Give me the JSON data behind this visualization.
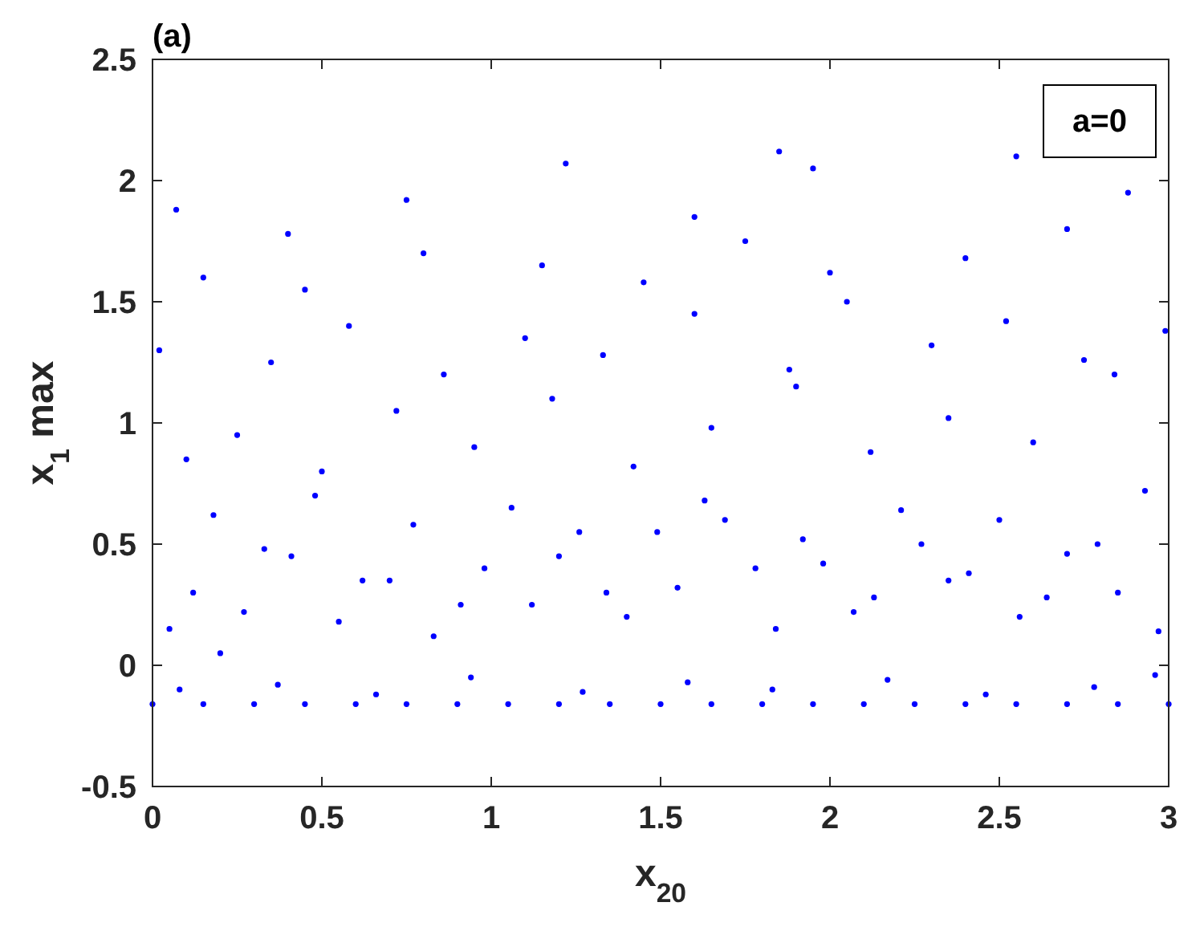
{
  "chart_data": {
    "type": "scatter",
    "title": "(a)",
    "xlabel": "x$_{20}$",
    "ylabel": "x$_{1}$ max",
    "annotations": [
      "a=0"
    ],
    "xlim": [
      0,
      3
    ],
    "ylim": [
      -0.5,
      2.5
    ],
    "xticks": [
      0,
      0.5,
      1,
      1.5,
      2,
      2.5,
      3
    ],
    "yticks": [
      -0.5,
      0,
      0.5,
      1,
      1.5,
      2,
      2.5
    ],
    "grid": false,
    "marker": "circle",
    "series": [
      {
        "color": "#0000ff",
        "x": [
          0,
          0.15,
          0.3,
          0.45,
          0.6,
          0.75,
          0.9,
          1.05,
          1.2,
          1.35,
          1.5,
          1.65,
          1.8,
          1.95,
          2.1,
          2.25,
          2.4,
          2.55,
          2.7,
          2.85,
          3,
          0.08,
          0.37,
          0.66,
          0.94,
          1.27,
          1.58,
          1.83,
          2.17,
          2.46,
          2.78,
          2.96,
          0.2,
          0.05,
          0.12,
          0.27,
          0.41,
          0.55,
          0.7,
          0.83,
          0.98,
          1.12,
          1.26,
          1.4,
          1.55,
          1.69,
          1.84,
          1.98,
          2.13,
          2.27,
          2.41,
          2.56,
          2.7,
          2.85,
          2.97,
          0.18,
          0.33,
          0.48,
          0.62,
          0.77,
          0.91,
          1.06,
          1.2,
          1.34,
          1.49,
          1.63,
          1.78,
          1.92,
          2.07,
          2.21,
          2.35,
          2.5,
          2.64,
          2.79,
          2.93,
          0.1,
          0.25,
          0.5,
          0.72,
          0.95,
          1.18,
          1.42,
          1.65,
          1.9,
          2.12,
          2.35,
          2.6,
          2.84,
          0.02,
          0.35,
          0.58,
          0.86,
          1.1,
          1.33,
          1.6,
          1.88,
          2.05,
          2.3,
          2.52,
          2.75,
          2.99,
          0.15,
          0.45,
          0.8,
          1.15,
          1.45,
          1.75,
          2.0,
          2.4,
          2.7,
          0.07,
          0.4,
          0.75,
          1.22,
          1.6,
          1.85,
          1.95,
          2.55,
          2.88
        ],
        "values": [
          -0.16,
          -0.16,
          -0.16,
          -0.16,
          -0.16,
          -0.16,
          -0.16,
          -0.16,
          -0.16,
          -0.16,
          -0.16,
          -0.16,
          -0.16,
          -0.16,
          -0.16,
          -0.16,
          -0.16,
          -0.16,
          -0.16,
          -0.16,
          -0.16,
          -0.1,
          -0.08,
          -0.12,
          -0.05,
          -0.11,
          -0.07,
          -0.1,
          -0.06,
          -0.12,
          -0.09,
          -0.04,
          0.05,
          0.15,
          0.3,
          0.22,
          0.45,
          0.18,
          0.35,
          0.12,
          0.4,
          0.25,
          0.55,
          0.2,
          0.32,
          0.6,
          0.15,
          0.42,
          0.28,
          0.5,
          0.38,
          0.2,
          0.46,
          0.3,
          0.14,
          0.62,
          0.48,
          0.7,
          0.35,
          0.58,
          0.25,
          0.65,
          0.45,
          0.3,
          0.55,
          0.68,
          0.4,
          0.52,
          0.22,
          0.64,
          0.35,
          0.6,
          0.28,
          0.5,
          0.72,
          0.85,
          0.95,
          0.8,
          1.05,
          0.9,
          1.1,
          0.82,
          0.98,
          1.15,
          0.88,
          1.02,
          0.92,
          1.2,
          1.3,
          1.25,
          1.4,
          1.2,
          1.35,
          1.28,
          1.45,
          1.22,
          1.5,
          1.32,
          1.42,
          1.26,
          1.38,
          1.6,
          1.55,
          1.7,
          1.65,
          1.58,
          1.75,
          1.62,
          1.68,
          1.8,
          1.88,
          1.78,
          1.92,
          2.07,
          1.85,
          2.12,
          2.05,
          2.1,
          1.95
        ]
      }
    ]
  }
}
